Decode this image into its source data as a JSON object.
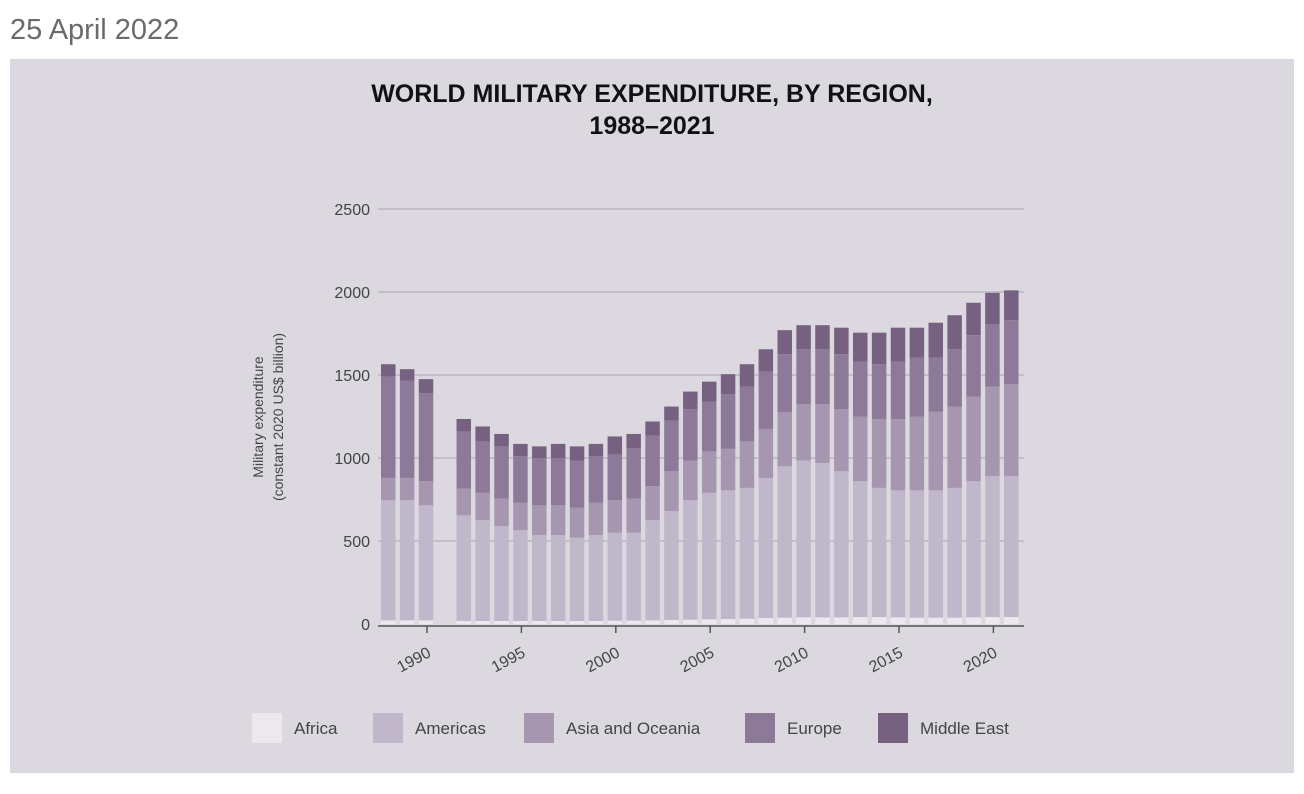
{
  "date": "25 April 2022",
  "chart_data": {
    "type": "bar",
    "stacked": true,
    "title_line1": "WORLD MILITARY EXPENDITURE, BY REGION,",
    "title_line2": "1988–2021",
    "ylabel_line1": "Military expenditure",
    "ylabel_line2": "(constant 2020 US$ billion)",
    "xlabel": "",
    "ylim": [
      0,
      2500
    ],
    "yticks": [
      0,
      500,
      1000,
      1500,
      2000,
      2500
    ],
    "xticks": [
      1990,
      1995,
      2000,
      2005,
      2010,
      2015,
      2020
    ],
    "grid": true,
    "legend_position": "bottom",
    "categories": [
      1988,
      1989,
      1990,
      1992,
      1993,
      1994,
      1995,
      1996,
      1997,
      1998,
      1999,
      2000,
      2001,
      2002,
      2003,
      2004,
      2005,
      2006,
      2007,
      2008,
      2009,
      2010,
      2011,
      2012,
      2013,
      2014,
      2015,
      2016,
      2017,
      2018,
      2019,
      2020,
      2021
    ],
    "series": [
      {
        "name": "Africa",
        "color": "#ebe8ee",
        "values": [
          22,
          22,
          22,
          18,
          18,
          18,
          18,
          18,
          18,
          18,
          18,
          20,
          20,
          22,
          24,
          26,
          28,
          30,
          32,
          36,
          38,
          40,
          40,
          40,
          42,
          42,
          40,
          38,
          38,
          38,
          40,
          42,
          42
        ]
      },
      {
        "name": "Americas",
        "color": "#c1b7cb",
        "values": [
          723,
          723,
          693,
          637,
          607,
          572,
          547,
          517,
          517,
          502,
          517,
          530,
          530,
          603,
          656,
          719,
          762,
          775,
          788,
          844,
          912,
          945,
          930,
          880,
          818,
          778,
          765,
          767,
          767,
          782,
          820,
          848,
          848
        ]
      },
      {
        "name": "Asia and Oceania",
        "color": "#a796b0",
        "values": [
          135,
          135,
          145,
          160,
          165,
          165,
          165,
          180,
          180,
          180,
          195,
          195,
          205,
          205,
          240,
          240,
          250,
          250,
          280,
          295,
          325,
          340,
          355,
          375,
          390,
          415,
          430,
          445,
          475,
          490,
          510,
          540,
          555
        ]
      },
      {
        "name": "Europe",
        "color": "#8d7a98",
        "values": [
          610,
          585,
          530,
          345,
          310,
          315,
          280,
          285,
          285,
          285,
          280,
          275,
          305,
          305,
          305,
          310,
          300,
          330,
          330,
          345,
          350,
          330,
          330,
          330,
          330,
          330,
          345,
          355,
          325,
          345,
          370,
          375,
          385
        ]
      },
      {
        "name": "Middle East",
        "color": "#776181",
        "values": [
          75,
          70,
          85,
          75,
          90,
          75,
          75,
          70,
          85,
          85,
          75,
          110,
          85,
          85,
          85,
          105,
          120,
          120,
          135,
          135,
          145,
          145,
          145,
          160,
          175,
          190,
          205,
          180,
          210,
          205,
          195,
          190,
          180
        ]
      }
    ]
  }
}
